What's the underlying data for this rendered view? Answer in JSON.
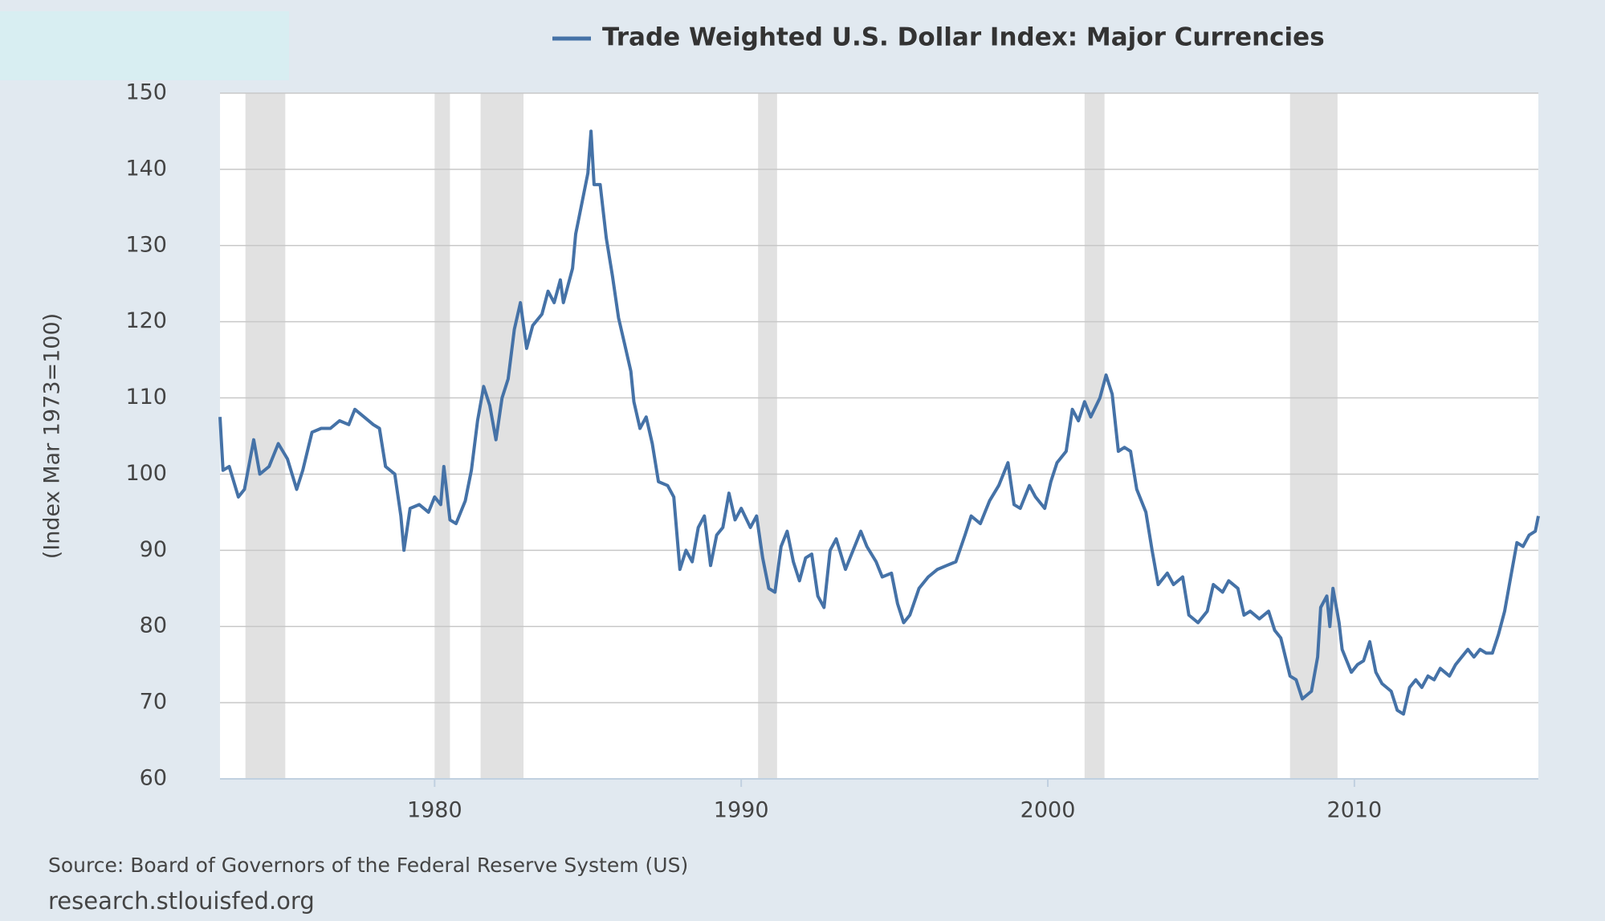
{
  "chart_data": {
    "type": "line",
    "series": [
      {
        "name": "Trade Weighted U.S. Dollar Index: Major Currencies",
        "color": "#4572a7",
        "values": [
          107.5,
          100.5,
          101,
          97,
          98,
          104.5,
          100,
          101,
          104,
          102,
          98,
          100.5,
          105.5,
          106,
          106,
          107,
          106.5,
          108.5,
          107.5,
          106.5,
          106,
          101,
          100,
          94.5,
          90,
          95.5,
          96,
          95,
          97,
          96,
          101,
          94,
          93.5,
          96.5,
          100.5,
          107,
          111.5,
          109,
          104.5,
          110,
          112.5,
          119,
          122.5,
          116.5,
          119.5,
          121,
          124,
          122.5,
          125.5,
          122.5,
          127,
          131.5,
          135.5,
          139.5,
          145,
          138,
          138,
          131,
          126,
          120.5,
          117,
          113.5,
          109.5,
          106,
          107.5,
          104,
          99,
          98.5,
          97,
          87.5,
          90,
          88.5,
          93,
          94.5,
          88,
          92,
          93,
          97.5,
          94,
          95.5,
          93,
          94.5,
          89,
          85,
          84.5,
          90.5,
          92.5,
          88.5,
          86,
          89,
          89.5,
          84,
          82.5,
          90,
          91.5,
          87.5,
          89.5,
          92.5,
          90.5,
          88.5,
          86.5,
          87,
          83,
          80.5,
          81.5,
          85,
          86.5,
          87.5,
          88,
          88.5,
          92,
          94.5,
          93.5,
          96.5,
          98.5,
          101.5,
          96,
          95.5,
          98.5,
          97,
          95.5,
          99,
          101.5,
          103,
          108.5,
          107,
          109.5,
          107.5,
          110,
          113,
          110.5,
          103,
          103.5,
          103,
          98,
          95,
          90,
          85.5,
          87,
          85.5,
          86.5,
          81.5,
          80.5,
          82,
          85.5,
          84.5,
          86,
          85,
          81.5,
          82,
          81,
          82,
          79.5,
          78.5,
          73.5,
          73,
          70.5,
          71.5,
          76,
          82.5,
          84,
          80,
          85,
          80.5,
          77,
          74,
          75,
          75.5,
          78,
          74,
          72.5,
          71.5,
          69,
          68.5,
          72,
          73,
          72,
          73.5,
          73,
          74.5,
          73.5,
          75,
          76,
          77,
          76,
          77,
          76.5,
          76.5,
          79,
          82,
          86.5,
          91,
          90.5,
          92,
          92.5,
          94.5
        ]
      }
    ],
    "x": [
      1973.0,
      1973.1,
      1973.3,
      1973.6,
      1973.8,
      1974.1,
      1974.3,
      1974.6,
      1974.9,
      1975.2,
      1975.5,
      1975.7,
      1976.0,
      1976.3,
      1976.6,
      1976.9,
      1977.2,
      1977.4,
      1977.7,
      1978.0,
      1978.2,
      1978.4,
      1978.7,
      1978.9,
      1979.0,
      1979.2,
      1979.5,
      1979.8,
      1980.0,
      1980.2,
      1980.3,
      1980.5,
      1980.7,
      1981.0,
      1981.2,
      1981.4,
      1981.6,
      1981.8,
      1982.0,
      1982.2,
      1982.4,
      1982.6,
      1982.8,
      1983.0,
      1983.2,
      1983.5,
      1983.7,
      1983.9,
      1984.1,
      1984.2,
      1984.5,
      1984.6,
      1984.8,
      1985.0,
      1985.1,
      1985.2,
      1985.4,
      1985.6,
      1985.8,
      1986.0,
      1986.2,
      1986.4,
      1986.5,
      1986.7,
      1986.9,
      1987.1,
      1987.3,
      1987.6,
      1987.8,
      1988.0,
      1988.2,
      1988.4,
      1988.6,
      1988.8,
      1989.0,
      1989.2,
      1989.4,
      1989.6,
      1989.8,
      1990.0,
      1990.3,
      1990.5,
      1990.7,
      1990.9,
      1991.1,
      1991.3,
      1991.5,
      1991.7,
      1991.9,
      1992.1,
      1992.3,
      1992.5,
      1992.7,
      1992.9,
      1993.1,
      1993.4,
      1993.6,
      1993.9,
      1994.1,
      1994.4,
      1994.6,
      1994.9,
      1995.1,
      1995.3,
      1995.5,
      1995.8,
      1996.1,
      1996.4,
      1996.7,
      1997.0,
      1997.3,
      1997.5,
      1997.8,
      1998.1,
      1998.4,
      1998.7,
      1998.9,
      1999.1,
      1999.4,
      1999.6,
      1999.9,
      2000.1,
      2000.3,
      2000.6,
      2000.8,
      2001.0,
      2001.2,
      2001.4,
      2001.7,
      2001.9,
      2002.1,
      2002.3,
      2002.5,
      2002.7,
      2002.9,
      2003.2,
      2003.4,
      2003.6,
      2003.9,
      2004.1,
      2004.4,
      2004.6,
      2004.9,
      2005.2,
      2005.4,
      2005.7,
      2005.9,
      2006.2,
      2006.4,
      2006.6,
      2006.9,
      2007.2,
      2007.4,
      2007.6,
      2007.9,
      2008.1,
      2008.3,
      2008.6,
      2008.8,
      2008.9,
      2009.1,
      2009.2,
      2009.3,
      2009.5,
      2009.6,
      2009.9,
      2010.1,
      2010.3,
      2010.5,
      2010.7,
      2010.9,
      2011.2,
      2011.4,
      2011.6,
      2011.8,
      2012.0,
      2012.2,
      2012.4,
      2012.6,
      2012.8,
      2013.1,
      2013.3,
      2013.5,
      2013.7,
      2013.9,
      2014.1,
      2014.3,
      2014.5,
      2014.7,
      2014.9,
      2015.1,
      2015.3,
      2015.5,
      2015.7,
      2015.9,
      2016.0
    ],
    "recessions": [
      [
        1973.83,
        1975.13
      ],
      [
        1980.0,
        1980.5
      ],
      [
        1981.5,
        1982.9
      ],
      [
        1990.55,
        1991.17
      ],
      [
        2001.2,
        2001.85
      ],
      [
        2007.9,
        2009.45
      ]
    ],
    "recession_color": "#e1e1e1",
    "xlim": [
      1973.0,
      2016.0
    ],
    "xticks": [
      1980,
      1990,
      2000,
      2010
    ],
    "ylim": [
      60,
      150
    ],
    "yticks": [
      60,
      70,
      80,
      90,
      100,
      110,
      120,
      130,
      140,
      150
    ],
    "grid": true,
    "y_label": "(Index Mar 1973=100)",
    "source": "Source: Board of Governors of the Federal Reserve System (US)",
    "url": "research.stlouisfed.org"
  }
}
